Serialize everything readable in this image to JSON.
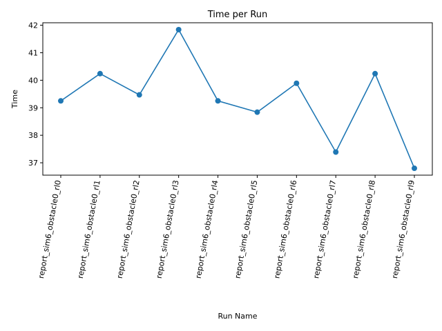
{
  "chart_data": {
    "type": "line",
    "title": "Time per Run",
    "xlabel": "Run Name",
    "ylabel": "Time",
    "categories": [
      "report_sim6_obstacle0_rl0",
      "report_sim6_obstacle0_rl1",
      "report_sim6_obstacle0_rl2",
      "report_sim6_obstacle0_rl3",
      "report_sim6_obstacle0_rl4",
      "report_sim6_obstacle0_rl5",
      "report_sim6_obstacle0_rl6",
      "report_sim6_obstacle0_rl7",
      "report_sim6_obstacle0_rl8",
      "report_sim6_obstacle0_rl9"
    ],
    "values": [
      39.25,
      40.24,
      39.47,
      41.84,
      39.25,
      38.84,
      39.89,
      37.39,
      40.24,
      36.8
    ],
    "ylim": [
      36.55,
      42.09
    ],
    "yticks": [
      37,
      38,
      39,
      40,
      41,
      42
    ],
    "grid": false,
    "legend": "none",
    "line_color": "#1f77b4"
  }
}
